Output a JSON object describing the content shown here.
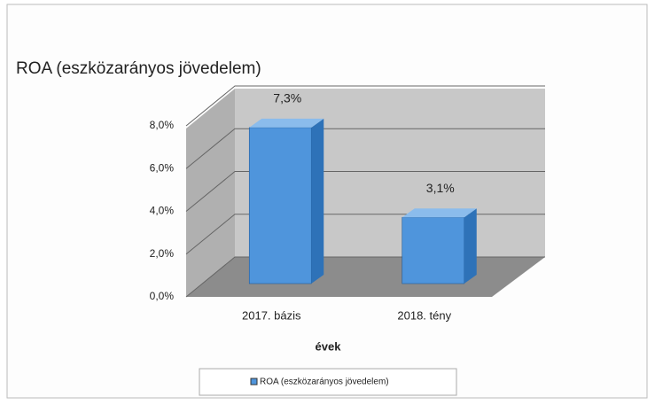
{
  "chart_data": {
    "type": "bar3d",
    "title": "ROA (eszközarányos jövedelem)",
    "categories": [
      "2017. bázis",
      "2018. tény"
    ],
    "series": [
      {
        "name": "ROA (eszközarányos jövedelem)",
        "color": "#4f95dc",
        "values": [
          7.3,
          3.1
        ],
        "value_labels": [
          "7,3%",
          "3,1%"
        ]
      }
    ],
    "xlabel": "évek",
    "ylim": [
      0,
      8
    ],
    "yticks": [
      {
        "value": 0,
        "label": "0,0%"
      },
      {
        "value": 2,
        "label": "2,0%"
      },
      {
        "value": 4,
        "label": "4,0%"
      },
      {
        "value": 6,
        "label": "6,0%"
      },
      {
        "value": 8,
        "label": "8,0%"
      }
    ],
    "grid": true,
    "legend": "bottom"
  }
}
